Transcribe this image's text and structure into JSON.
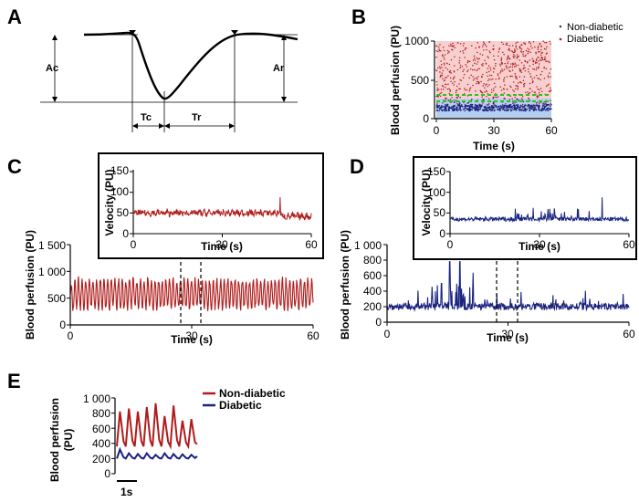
{
  "figure": {
    "panels": [
      {
        "id": "A",
        "letter": "A"
      },
      {
        "id": "B",
        "letter": "B"
      },
      {
        "id": "C",
        "letter": "C"
      },
      {
        "id": "D",
        "letter": "D"
      },
      {
        "id": "E",
        "letter": "E"
      }
    ]
  },
  "schematic": {
    "labels": {
      "ac": "Ac",
      "ar": "Ar",
      "tc": "Tc",
      "tr": "Tr"
    }
  },
  "colors": {
    "nondiabetic": "#b01c1c",
    "diabetic": "#1a237e",
    "bg_red": "#f8cfcf",
    "bg_blue": "#b5cdee",
    "green": "#22c522",
    "axis": "#000000"
  },
  "chart_data": [
    {
      "panel": "B",
      "type": "scatter",
      "xlabel": "Time (s)",
      "ylabel": "Blood perfusion (PU)",
      "xlim": [
        0,
        60
      ],
      "ylim": [
        0,
        1000
      ],
      "xticks": [
        "0",
        "30",
        "60"
      ],
      "yticks": [
        "0",
        "500",
        "1000"
      ],
      "legend": [
        "Non-diabetic",
        "Diabetic"
      ],
      "series": [
        {
          "name": "Non-diabetic",
          "mean_level": 500,
          "range": [
            150,
            1000
          ]
        },
        {
          "name": "Diabetic",
          "mean_level": 140,
          "range": [
            80,
            300
          ]
        }
      ],
      "reference_lines": [
        200,
        270
      ]
    },
    {
      "panel": "C",
      "type": "line",
      "xlabel": "Time (s)",
      "ylabel": "Blood perfusion (PU)",
      "xlim": [
        0,
        60
      ],
      "ylim": [
        0,
        1500
      ],
      "xticks": [
        "0",
        "30",
        "60"
      ],
      "yticks": [
        "0",
        "500",
        "1 000",
        "1 500"
      ],
      "series": [
        {
          "name": "Non-diabetic",
          "baseline": 450,
          "peak": 900
        }
      ],
      "window": [
        27,
        32
      ],
      "inset": {
        "ylabel": "Velocity (PU)",
        "xlabel": "Time (s)",
        "xlim": [
          0,
          60
        ],
        "ylim": [
          0,
          150
        ],
        "xticks": [
          "0",
          "30",
          "60"
        ],
        "yticks": [
          "0",
          "50",
          "100",
          "150"
        ],
        "level": 50,
        "spike": {
          "x": 49.5,
          "y": 88
        }
      }
    },
    {
      "panel": "D",
      "type": "line",
      "xlabel": "Time (s)",
      "ylabel": "Blood perfusion (PU)",
      "xlim": [
        0,
        60
      ],
      "ylim": [
        0,
        1000
      ],
      "xticks": [
        "0",
        "30",
        "60"
      ],
      "yticks": [
        "0",
        "200",
        "400",
        "600",
        "800",
        "1 000"
      ],
      "series": [
        {
          "name": "Diabetic",
          "baseline": 200,
          "peaks": [
            {
              "x": 15.5,
              "y": 780
            },
            {
              "x": 18,
              "y": 780
            },
            {
              "x": 13.5,
              "y": 500
            }
          ]
        }
      ],
      "window": [
        27,
        32
      ],
      "inset": {
        "ylabel": "Velocity (PU)",
        "xlabel": "Time (s)",
        "xlim": [
          0,
          60
        ],
        "ylim": [
          0,
          150
        ],
        "xticks": [
          "0",
          "30",
          "60"
        ],
        "yticks": [
          "0",
          "50",
          "100",
          "150"
        ],
        "level": 35,
        "spike": {
          "x": 51,
          "y": 88
        }
      }
    },
    {
      "panel": "E",
      "type": "line",
      "ylabel_line1": "Blood perfusion",
      "ylabel_line2": "(PU)",
      "ylim": [
        0,
        1000
      ],
      "yticks": [
        "0",
        "200",
        "400",
        "600",
        "800",
        "1 000"
      ],
      "scalebar": "1s",
      "legend": [
        "Non-diabetic",
        "Diabetic"
      ],
      "series": [
        {
          "name": "Non-diabetic",
          "baseline": 360,
          "peaks": [
            820,
            860,
            820,
            880,
            930,
            760,
            900,
            700,
            720
          ]
        },
        {
          "name": "Diabetic",
          "baseline": 200,
          "peaks": [
            320,
            270,
            260,
            270,
            250,
            270,
            260,
            255,
            250
          ]
        }
      ]
    }
  ]
}
